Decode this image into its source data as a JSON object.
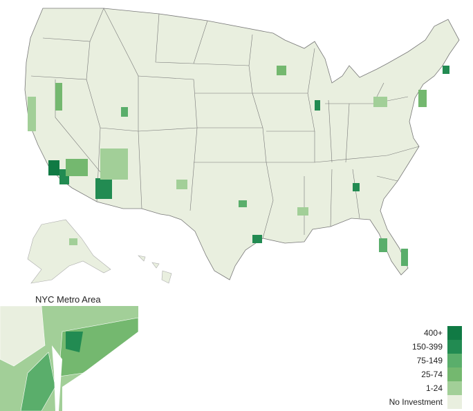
{
  "inset": {
    "title": "NYC Metro Area"
  },
  "legend": {
    "items": [
      {
        "label": "400+",
        "color": "#107a44"
      },
      {
        "label": "150-399",
        "color": "#228b52"
      },
      {
        "label": "75-149",
        "color": "#5aae6b"
      },
      {
        "label": "25-74",
        "color": "#74b86f"
      },
      {
        "label": "1-24",
        "color": "#a2cf98"
      },
      {
        "label": "No Investment",
        "color": "#e9efdf"
      }
    ]
  },
  "colors": {
    "border": "#666666",
    "county_border": "#d8dccf"
  }
}
